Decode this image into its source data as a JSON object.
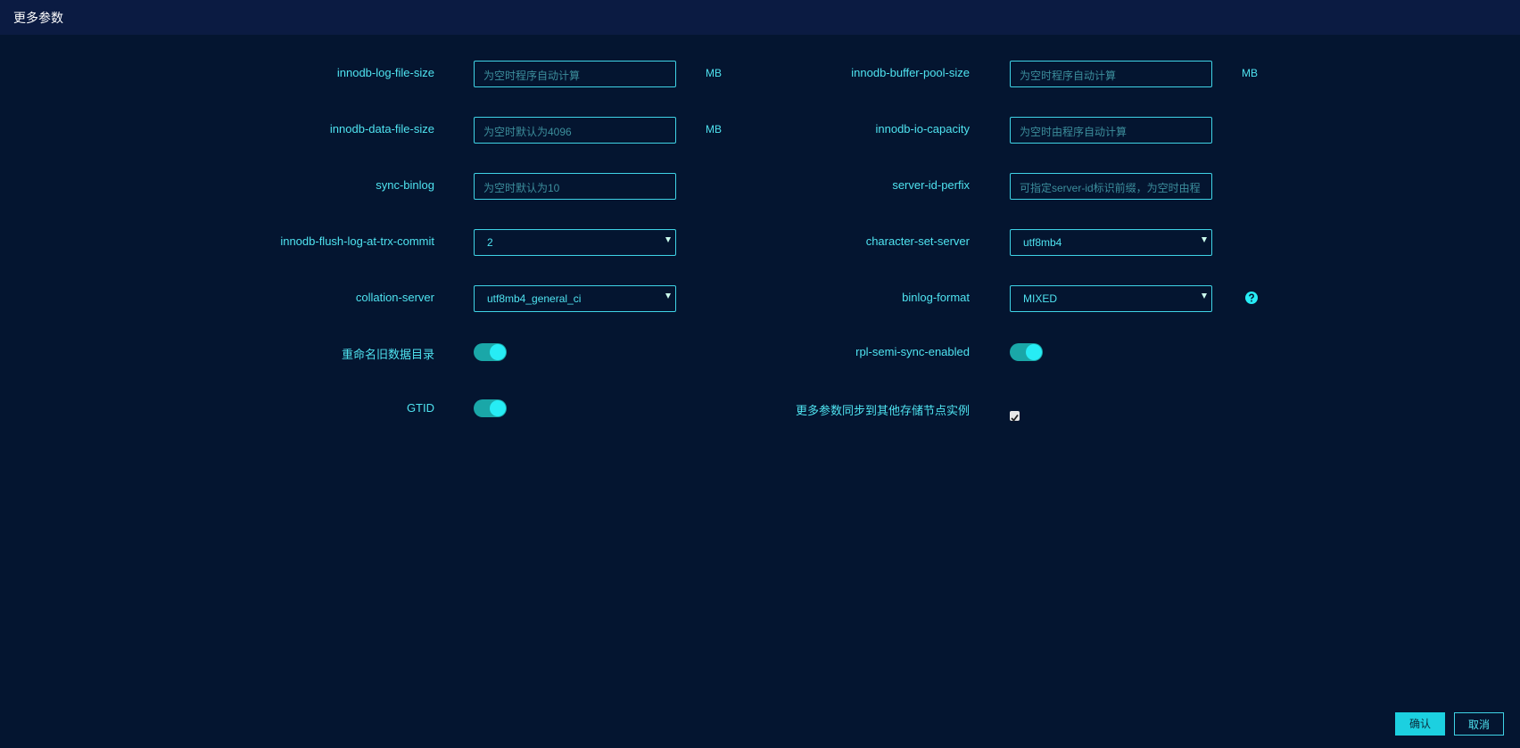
{
  "header": {
    "title": "更多参数"
  },
  "left": [
    {
      "label": "innodb-log-file-size",
      "type": "input",
      "placeholder": "为空时程序自动计算",
      "unit": "MB"
    },
    {
      "label": "innodb-data-file-size",
      "type": "input",
      "placeholder": "为空时默认为4096",
      "unit": "MB"
    },
    {
      "label": "sync-binlog",
      "type": "input",
      "placeholder": "为空时默认为10"
    },
    {
      "label": "innodb-flush-log-at-trx-commit",
      "type": "select",
      "value": "2"
    },
    {
      "label": "collation-server",
      "type": "select",
      "value": "utf8mb4_general_ci"
    },
    {
      "label": "重命名旧数据目录",
      "type": "switch",
      "on": true
    },
    {
      "label": "GTID",
      "type": "switch",
      "on": true
    }
  ],
  "right": [
    {
      "label": "innodb-buffer-pool-size",
      "type": "input",
      "placeholder": "为空时程序自动计算",
      "unit": "MB"
    },
    {
      "label": "innodb-io-capacity",
      "type": "input",
      "placeholder": "为空时由程序自动计算"
    },
    {
      "label": "server-id-perfix",
      "type": "input",
      "placeholder": "可指定server-id标识前缀，为空时由程"
    },
    {
      "label": "character-set-server",
      "type": "select",
      "value": "utf8mb4"
    },
    {
      "label": "binlog-format",
      "type": "select",
      "value": "MIXED",
      "help": true
    },
    {
      "label": "rpl-semi-sync-enabled",
      "type": "switch",
      "on": true
    },
    {
      "label": "更多参数同步到其他存储节点实例",
      "type": "checkbox",
      "checked": true
    }
  ],
  "buttons": {
    "confirm": "确认",
    "cancel": "取消"
  }
}
